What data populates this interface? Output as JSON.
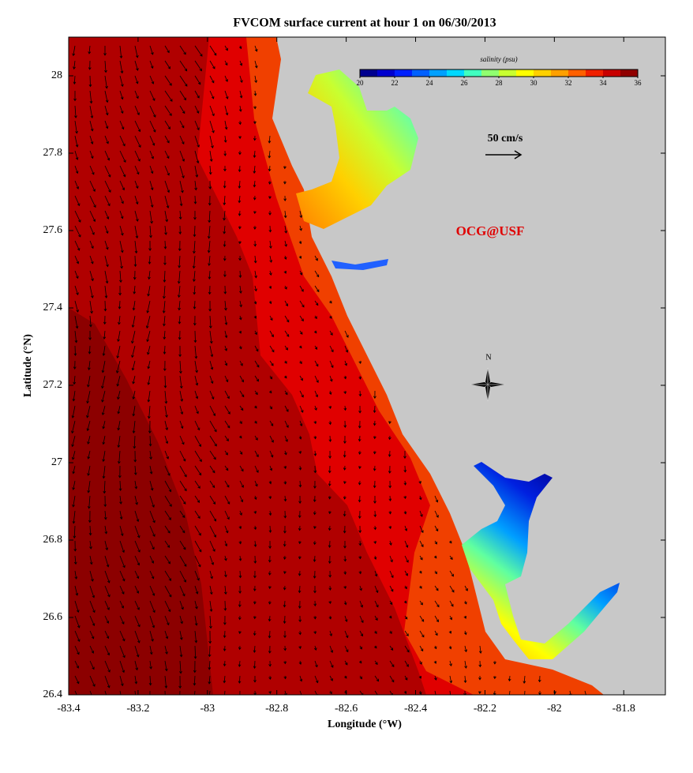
{
  "title": "FVCOM surface current at hour 1 on 06/30/2013",
  "x_axis": {
    "label": "Longitude (°W)",
    "lim": [
      -83.4,
      -81.68
    ],
    "ticks": [
      -83.4,
      -83.2,
      -83,
      -82.8,
      -82.6,
      -82.4,
      -82.2,
      -82,
      -81.8
    ]
  },
  "y_axis": {
    "label": "Latitude (°N)",
    "lim": [
      26.4,
      28.1
    ],
    "ticks": [
      26.4,
      26.6,
      26.8,
      27,
      27.2,
      27.4,
      27.6,
      27.8,
      28
    ]
  },
  "colorbar": {
    "title": "salinity (psu)",
    "ticks": [
      20,
      22,
      24,
      26,
      28,
      30,
      32,
      34,
      36
    ],
    "colors": [
      "#00008f",
      "#0000cf",
      "#0020ff",
      "#0060ff",
      "#00a0ff",
      "#00d8ff",
      "#40ffc0",
      "#90ff70",
      "#c8ff30",
      "#ffff00",
      "#ffd000",
      "#ffa000",
      "#ff6000",
      "#f02000",
      "#c80000",
      "#900000"
    ]
  },
  "scale_label": "50 cm/s",
  "credit": "OCG@USF",
  "north_label": "N"
}
